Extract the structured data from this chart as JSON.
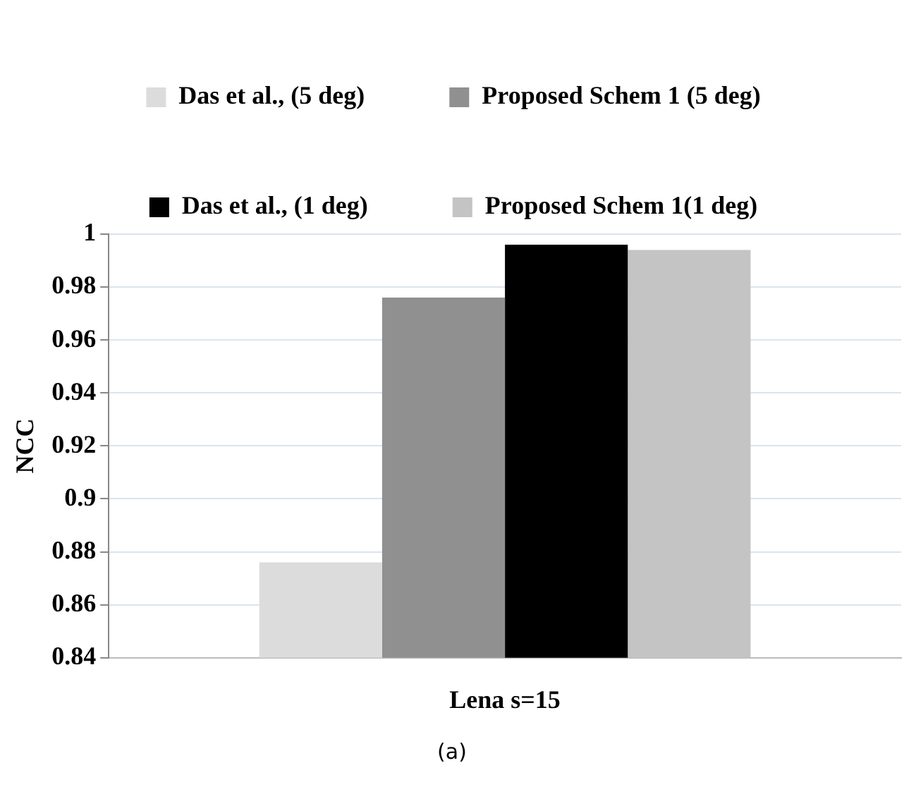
{
  "chart_data": {
    "type": "bar",
    "ylabel": "NCC",
    "categories": [
      "Lena s=15"
    ],
    "series": [
      {
        "name": "Das et al., (5 deg)",
        "color": "#dcdcdc",
        "values": [
          0.876
        ]
      },
      {
        "name": "Proposed Schem 1 (5 deg)",
        "color": "#909090",
        "values": [
          0.976
        ]
      },
      {
        "name": "Das et al., (1 deg)",
        "color": "#000000",
        "values": [
          0.996
        ]
      },
      {
        "name": "Proposed Schem 1(1 deg)",
        "color": "#c4c4c4",
        "values": [
          0.994
        ]
      }
    ],
    "ylim": [
      0.84,
      1
    ],
    "yticks": [
      0.84,
      0.86,
      0.88,
      0.9,
      0.92,
      0.94,
      0.96,
      0.98,
      1
    ],
    "grid": "y",
    "legend": "top",
    "annotations": [
      "(a)"
    ]
  }
}
